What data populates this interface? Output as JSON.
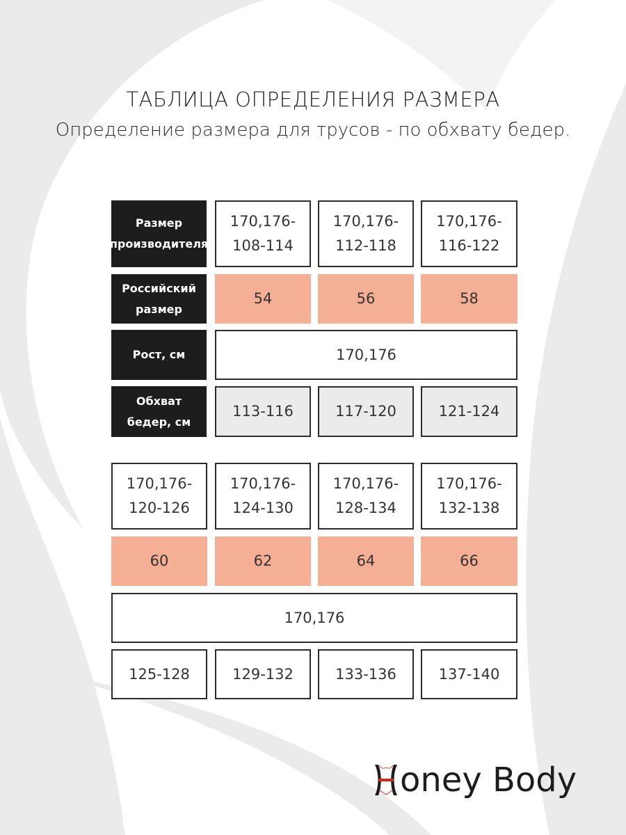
{
  "title": "ТАБЛИЦА ОПРЕДЕЛЕНИЯ РАЗМЕРА",
  "subtitle": "Определение размера для трусов - по обхвату бедер.",
  "headers": [
    "Размер производителя",
    "Российский размер",
    "Рост, см",
    "Обхват бедер, см"
  ],
  "table1": {
    "manufacturer": [
      "170,176-\n108-114",
      "170,176-\n112-118",
      "170,176-\n116-122"
    ],
    "russian": [
      "54",
      "56",
      "58"
    ],
    "height": "170,176",
    "hips": [
      "113-116",
      "117-120",
      "121-124"
    ]
  },
  "table2": {
    "manufacturer": [
      "170,176-\n120-126",
      "170,176-\n124-130",
      "170,176-\n128-134",
      "170,176-\n132-138"
    ],
    "russian": [
      "60",
      "62",
      "64",
      "66"
    ],
    "height": "170,176",
    "hips": [
      "125-128",
      "129-132",
      "133-136",
      "137-140"
    ]
  },
  "logo": {
    "text": "oney Body",
    "full": "Honey Body"
  },
  "colors": {
    "accent": "#f5af94",
    "header": "#1d1d1b",
    "background_shape": "#ebebeb",
    "logo_red": "#e2231a"
  }
}
